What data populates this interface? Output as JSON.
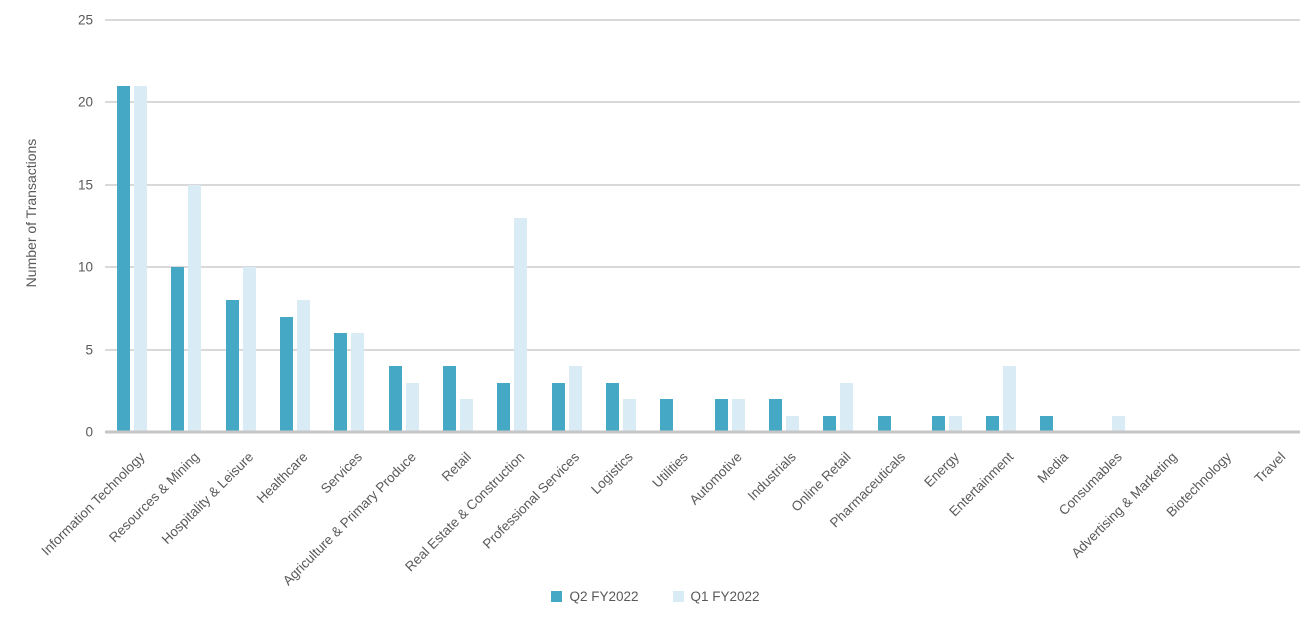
{
  "chart_data": {
    "type": "bar",
    "title": "",
    "ylabel": "Number of Transactions",
    "xlabel": "",
    "ylim": [
      0,
      25
    ],
    "yticks": [
      0,
      5,
      10,
      15,
      20,
      25
    ],
    "grid": true,
    "legend_position": "bottom",
    "categories": [
      "Information Technology",
      "Resources & Mining",
      "Hospitality & Leisure",
      "Healthcare",
      "Services",
      "Agriculture & Primary Produce",
      "Retail",
      "Real Estate & Construction",
      "Professional Services",
      "Logistics",
      "Utilities",
      "Automotive",
      "Industrials",
      "Online Retail",
      "Pharmaceuticals",
      "Energy",
      "Entertainment",
      "Media",
      "Consumables",
      "Advertising & Marketing",
      "Biotechnology",
      "Travel"
    ],
    "series": [
      {
        "name": "Q2 FY2022",
        "color": "#45A9C5",
        "values": [
          21,
          10,
          8,
          7,
          6,
          4,
          4,
          3,
          3,
          3,
          2,
          2,
          2,
          1,
          1,
          1,
          1,
          1,
          0,
          0,
          0,
          0
        ]
      },
      {
        "name": "Q1 FY2022",
        "color": "#D9EBF4",
        "values": [
          21,
          15,
          10,
          8,
          6,
          3,
          2,
          13,
          4,
          2,
          0,
          2,
          1,
          3,
          0,
          1,
          4,
          0,
          1,
          0,
          0,
          0
        ]
      }
    ],
    "colors": {
      "gridline": "#D9D9D9",
      "baseline": "#C6C6C6",
      "text": "#595959"
    }
  }
}
